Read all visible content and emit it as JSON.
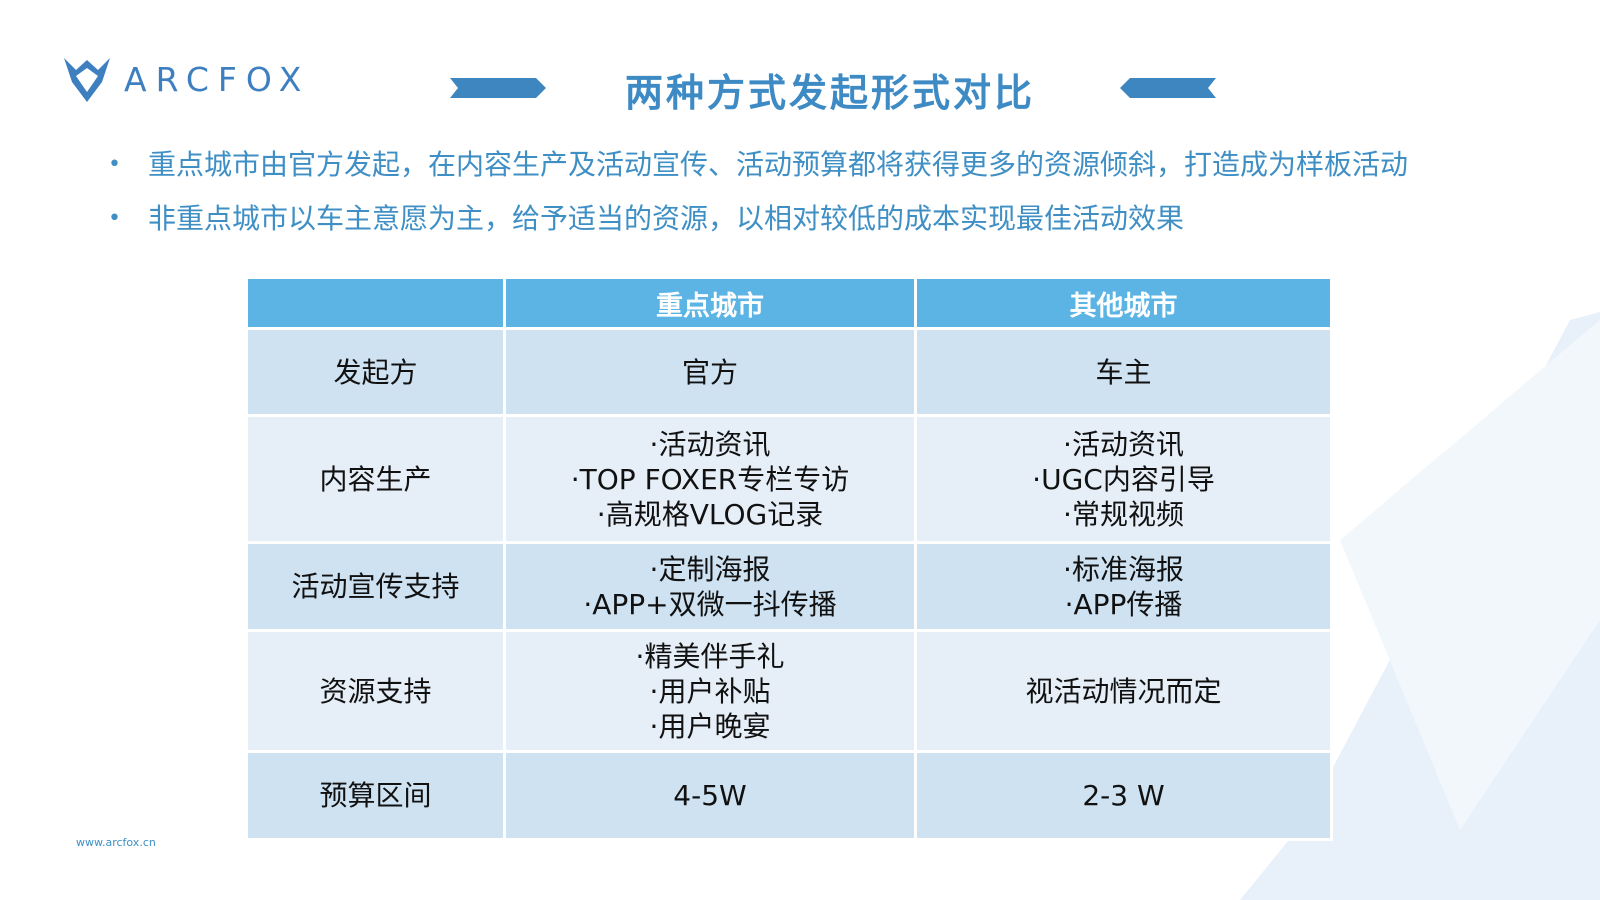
{
  "brand": {
    "name": "ARCFOX",
    "url": "www.arcfox.cn",
    "accent_color": "#3d8ac4",
    "header_color": "#5bb4e3"
  },
  "title": "两种方式发起形式对比",
  "bullets": [
    "重点城市由官方发起，在内容生产及活动宣传、活动预算都将获得更多的资源倾斜，打造成为样板活动",
    "非重点城市以车主意愿为主，给予适当的资源，以相对较低的成本实现最佳活动效果"
  ],
  "table": {
    "headers": [
      "",
      "重点城市",
      "其他城市"
    ],
    "rows": [
      {
        "label": "发起方",
        "key_city": [
          "官方"
        ],
        "other_city": [
          "车主"
        ]
      },
      {
        "label": "内容生产",
        "key_city": [
          "·活动资讯",
          "·TOP FOXER专栏专访",
          "·高规格VLOG记录"
        ],
        "other_city": [
          "·活动资讯",
          "·UGC内容引导",
          "·常规视频"
        ]
      },
      {
        "label": "活动宣传支持",
        "key_city": [
          "·定制海报",
          "·APP+双微一抖传播"
        ],
        "other_city": [
          "·标准海报",
          "·APP传播"
        ]
      },
      {
        "label": "资源支持",
        "key_city": [
          "·精美伴手礼",
          "·用户补贴",
          "·用户晚宴"
        ],
        "other_city": [
          "视活动情况而定"
        ]
      },
      {
        "label": "预算区间",
        "key_city": [
          "4-5W"
        ],
        "other_city": [
          "2-3 W"
        ]
      }
    ]
  }
}
